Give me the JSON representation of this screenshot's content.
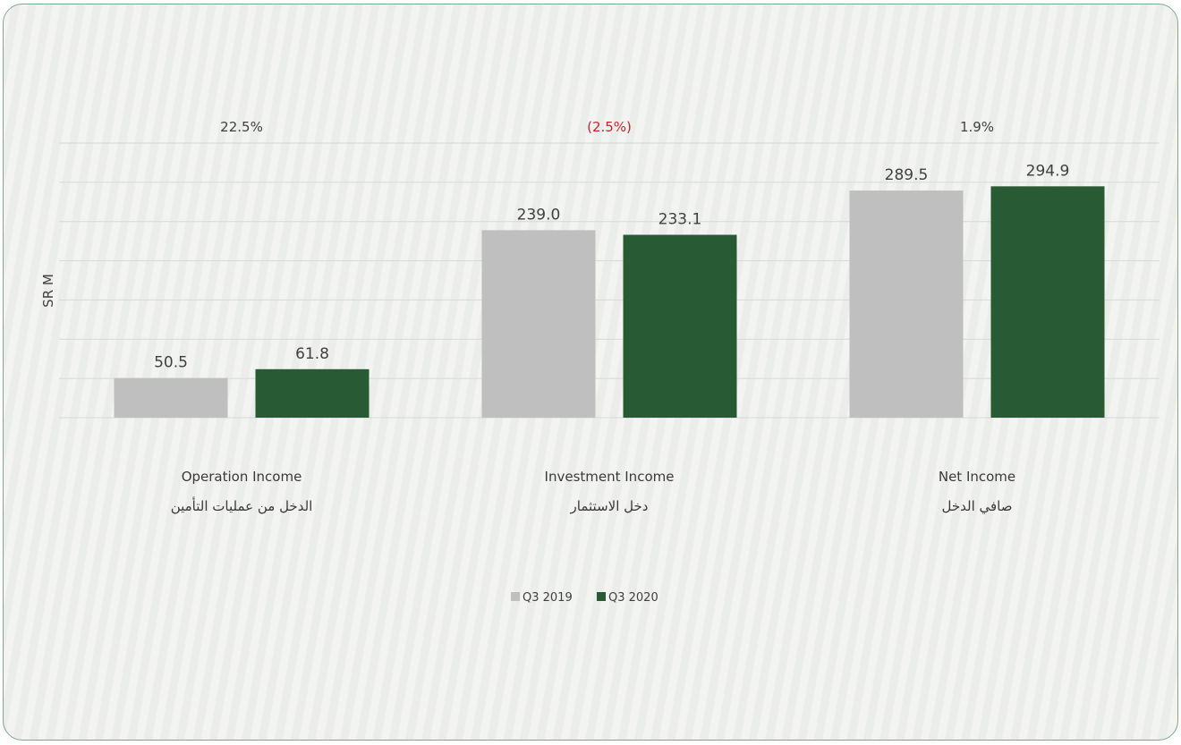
{
  "chart_data": {
    "type": "bar",
    "ylabel": "SR M",
    "ylim": [
      0,
      350
    ],
    "grid": true,
    "legend_position": "bottom-center",
    "categories": [
      {
        "en": "Operation Income",
        "ar": "الدخل من عمليات التأمين",
        "change": "22.5%",
        "change_negative": false
      },
      {
        "en": "Investment Income",
        "ar": "دخل الاستثمار",
        "change": "(2.5%)",
        "change_negative": true
      },
      {
        "en": "Net Income",
        "ar": "صافي الدخل",
        "change": "1.9%",
        "change_negative": false
      }
    ],
    "series": [
      {
        "name": "Q3 2019",
        "color": "#bfbfbf",
        "values": [
          50.5,
          239.0,
          289.5
        ],
        "labels": [
          "50.5",
          "239.0",
          "289.5"
        ]
      },
      {
        "name": "Q3 2020",
        "color": "#285a33",
        "values": [
          61.8,
          233.1,
          294.9
        ],
        "labels": [
          "61.8",
          "233.1",
          "294.9"
        ]
      }
    ]
  },
  "colors": {
    "grid": "#d6d8d5",
    "negative_change": "#d0202a",
    "card_border": "#7fa88f"
  }
}
